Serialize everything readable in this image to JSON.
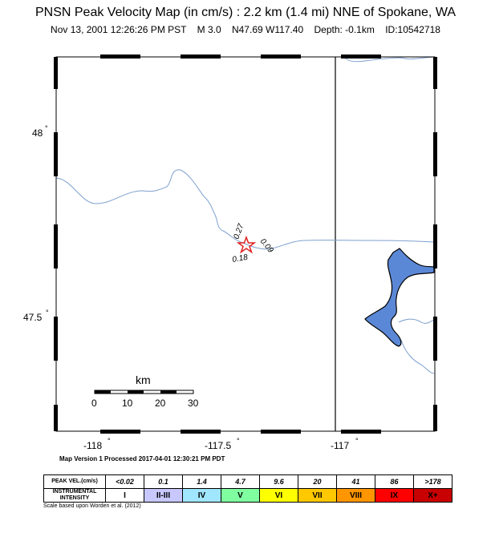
{
  "header": {
    "title": "PNSN Peak Velocity Map (in cm/s) : 2.2 km (1.4 mi) NNE of Spokane, WA",
    "date": "Nov 13, 2001 12:26:26 PM PST",
    "magnitude": "M 3.0",
    "location": "N47.69 W117.40",
    "depth": "Depth: -0.1km",
    "event_id": "ID:10542718"
  },
  "map": {
    "lat_labels": [
      "48",
      "47.5"
    ],
    "lon_labels": [
      "-118",
      "-117.5",
      "-117"
    ],
    "degree_mark": "°",
    "epicenter": {
      "lat": 47.69,
      "lon": -117.4
    },
    "station_values": [
      "0.27",
      "0.09",
      "0.18"
    ],
    "colors": {
      "water": "#5b88d6",
      "river": "#7ea0cf",
      "epicenter": "#e02020"
    },
    "scale_bar": {
      "unit_label": "km",
      "tick_labels": [
        "0",
        "10",
        "20",
        "30"
      ]
    }
  },
  "footer": {
    "version_text": "Map Version 1 Processed 2017-04-01 12:30:21 PM PDT",
    "scale_note": "Scale based upon Worden et al. (2012)"
  },
  "legend": {
    "velocity_header": "PEAK VEL.(cm/s)",
    "intensity_header_line1": "INSTRUMENTAL",
    "intensity_header_line2": "INTENSITY",
    "velocities": [
      "<0.02",
      "0.1",
      "1.4",
      "4.7",
      "9.6",
      "20",
      "41",
      "86",
      ">178"
    ],
    "intensities": [
      "I",
      "II-III",
      "IV",
      "V",
      "VI",
      "VII",
      "VIII",
      "IX",
      "X+"
    ],
    "intensity_colors": [
      "#ffffff",
      "#c8c8ff",
      "#a0e6ff",
      "#80ffa0",
      "#ffff00",
      "#ffc800",
      "#ff9600",
      "#ff0000",
      "#c80000"
    ]
  }
}
